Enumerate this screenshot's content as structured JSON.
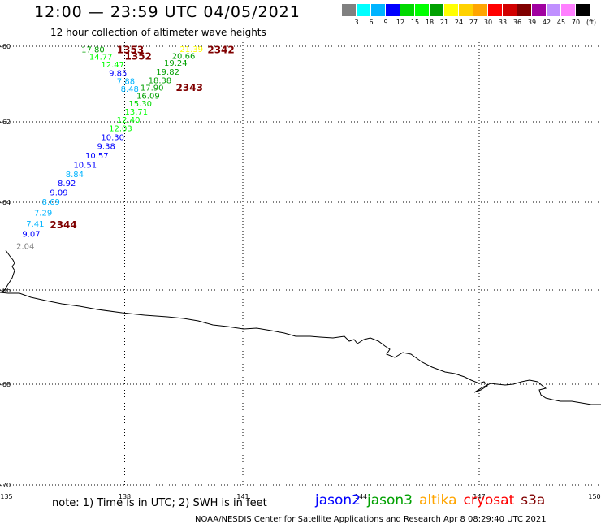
{
  "header": {
    "title": "12:00 — 23:59 UTC 04/05/2021",
    "subtitle": "12 hour collection of altimeter wave heights"
  },
  "scale": {
    "unit": "(ft)",
    "colors": [
      "#808080",
      "#00ffff",
      "#00b4ff",
      "#0000ff",
      "#00d800",
      "#00ff00",
      "#00a000",
      "#ffff00",
      "#ffd200",
      "#ffa500",
      "#ff0000",
      "#d20000",
      "#800000",
      "#a000a0",
      "#c090ff",
      "#ff80ff",
      "#000000"
    ],
    "labels": [
      "3",
      "6",
      "9",
      "12",
      "15",
      "18",
      "21",
      "24",
      "27",
      "30",
      "33",
      "36",
      "39",
      "42",
      "45",
      "70"
    ]
  },
  "chart_data": {
    "type": "map",
    "lon_ticks": [
      "135",
      "138",
      "141",
      "144",
      "147",
      "150"
    ],
    "lat_ticks": [
      "-60",
      "-62",
      "-64",
      "-66",
      "-68",
      "-70"
    ],
    "xlim": [
      135,
      150
    ],
    "ylim": [
      -70,
      -60
    ],
    "grid": true,
    "pass_labels": [
      {
        "text": "2342",
        "lon": 140.1,
        "lat": -60.07
      },
      {
        "text": "1353",
        "lon": 137.8,
        "lat": -60.07
      },
      {
        "text": "1352",
        "lon": 138.0,
        "lat": -60.25
      },
      {
        "text": "2343",
        "lon": 139.3,
        "lat": -61.08
      },
      {
        "text": "2344",
        "lon": 136.1,
        "lat": -64.5
      }
    ],
    "points": [
      {
        "v": "21.39",
        "lon": 139.4,
        "lat": -60.06,
        "c": "#ffff00"
      },
      {
        "v": "17.80",
        "lon": 136.9,
        "lat": -60.08,
        "c": "#00a000"
      },
      {
        "v": "14.77",
        "lon": 137.1,
        "lat": -60.27,
        "c": "#00ff00"
      },
      {
        "v": "20.66",
        "lon": 139.2,
        "lat": -60.25,
        "c": "#00a000"
      },
      {
        "v": "12.47",
        "lon": 137.4,
        "lat": -60.47,
        "c": "#00ff00"
      },
      {
        "v": "19.24",
        "lon": 139.0,
        "lat": -60.43,
        "c": "#00a000"
      },
      {
        "v": "9.85",
        "lon": 137.6,
        "lat": -60.7,
        "c": "#0000ff"
      },
      {
        "v": "19.82",
        "lon": 138.8,
        "lat": -60.67,
        "c": "#00a000"
      },
      {
        "v": "7.88",
        "lon": 137.8,
        "lat": -60.91,
        "c": "#00b4ff"
      },
      {
        "v": "18.38",
        "lon": 138.6,
        "lat": -60.89,
        "c": "#00a000"
      },
      {
        "v": "8.48",
        "lon": 137.9,
        "lat": -61.12,
        "c": "#00b4ff"
      },
      {
        "v": "17.90",
        "lon": 138.4,
        "lat": -61.09,
        "c": "#00a000"
      },
      {
        "v": "16.09",
        "lon": 138.3,
        "lat": -61.3,
        "c": "#00a000"
      },
      {
        "v": "15.30",
        "lon": 138.1,
        "lat": -61.51,
        "c": "#00d800"
      },
      {
        "v": "13.71",
        "lon": 138.0,
        "lat": -61.72,
        "c": "#00ff00"
      },
      {
        "v": "12.40",
        "lon": 137.8,
        "lat": -61.94,
        "c": "#00ff00"
      },
      {
        "v": "12.03",
        "lon": 137.6,
        "lat": -62.15,
        "c": "#00ff00"
      },
      {
        "v": "10.30",
        "lon": 137.4,
        "lat": -62.37,
        "c": "#0000ff"
      },
      {
        "v": "9.38",
        "lon": 137.3,
        "lat": -62.6,
        "c": "#0000ff"
      },
      {
        "v": "10.57",
        "lon": 137.0,
        "lat": -62.83,
        "c": "#0000ff"
      },
      {
        "v": "10.51",
        "lon": 136.7,
        "lat": -63.06,
        "c": "#0000ff"
      },
      {
        "v": "8.84",
        "lon": 136.5,
        "lat": -63.29,
        "c": "#00b4ff"
      },
      {
        "v": "8.92",
        "lon": 136.3,
        "lat": -63.52,
        "c": "#0000ff"
      },
      {
        "v": "9.09",
        "lon": 136.1,
        "lat": -63.75,
        "c": "#0000ff"
      },
      {
        "v": "8.69",
        "lon": 135.9,
        "lat": -63.98,
        "c": "#00b4ff"
      },
      {
        "v": "7.29",
        "lon": 135.7,
        "lat": -64.23,
        "c": "#00b4ff"
      },
      {
        "v": "7.41",
        "lon": 135.5,
        "lat": -64.48,
        "c": "#00b4ff"
      },
      {
        "v": "9.07",
        "lon": 135.4,
        "lat": -64.71,
        "c": "#0000ff"
      },
      {
        "v": "2.04",
        "lon": 135.25,
        "lat": -64.99,
        "c": "#808080"
      }
    ]
  },
  "footer": {
    "note": "note:  1) Time is in UTC;  2) SWH is in feet",
    "satellites": [
      {
        "name": "jason2",
        "color": "#0000ff"
      },
      {
        "name": "jason3",
        "color": "#00a000"
      },
      {
        "name": "altika",
        "color": "#ffa500"
      },
      {
        "name": "cryosat",
        "color": "#ff0000"
      },
      {
        "name": "s3a",
        "color": "#800000"
      }
    ],
    "credit": "NOAA/NESDIS Center for Satellite Applications and Research    Apr  8 08:29:40 UTC 2021"
  }
}
